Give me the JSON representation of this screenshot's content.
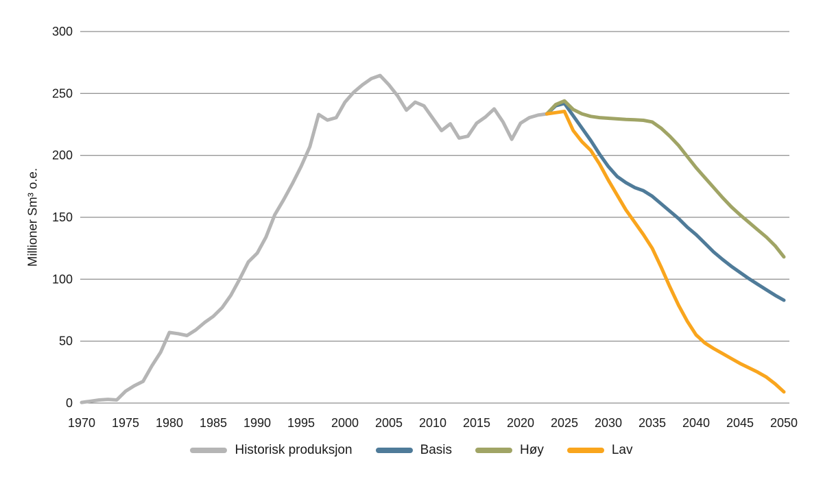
{
  "page": {
    "background": "#ffffff"
  },
  "chart_data": {
    "type": "line",
    "title": "",
    "xlabel": "",
    "ylabel": "Millioner Sm³ o.e.",
    "ylim": [
      0,
      300
    ],
    "xlim": [
      1970,
      2050
    ],
    "y_ticks": [
      0,
      50,
      100,
      150,
      200,
      250,
      300
    ],
    "x_ticks": [
      1970,
      1975,
      1980,
      1985,
      1990,
      1995,
      2000,
      2005,
      2010,
      2015,
      2020,
      2025,
      2030,
      2035,
      2040,
      2045,
      2050
    ],
    "grid": "horizontal-only",
    "grid_color": "#707070",
    "text_color": "#1a1a1a",
    "legend_position": "bottom-center",
    "line_width": 5,
    "series": [
      {
        "name": "Historisk produksjon",
        "color": "#b5b5b5",
        "start_year": 1970,
        "values": [
          0.5,
          1.5,
          2.5,
          3,
          2.5,
          9.5,
          14,
          17.5,
          30,
          41,
          57,
          56,
          54.5,
          59,
          65,
          70,
          77,
          87,
          100,
          114,
          121,
          134,
          152,
          164,
          177,
          191,
          207,
          233,
          228.5,
          230.5,
          243,
          251,
          257,
          262,
          264.5,
          257,
          248,
          236.5,
          243,
          240,
          230,
          220,
          225.5,
          214,
          215.5,
          226,
          231,
          237.5,
          227,
          213,
          226,
          230.5,
          232.5,
          233.5
        ]
      },
      {
        "name": "Basis",
        "color": "#4f7b99",
        "start_year": 2023,
        "values": [
          233.5,
          240,
          242,
          232,
          222,
          212,
          201,
          191,
          183,
          178,
          174,
          171.5,
          167,
          161,
          155,
          149,
          142,
          136,
          129,
          122,
          116,
          110.5,
          105.5,
          100.5,
          96,
          91.5,
          87,
          83
        ]
      },
      {
        "name": "Høy",
        "color": "#a0a465",
        "start_year": 2023,
        "values": [
          233.5,
          241,
          244,
          237,
          233.5,
          231.5,
          230.5,
          230,
          229.5,
          229,
          228.7,
          228.3,
          227,
          222,
          215.5,
          208,
          199,
          190,
          182,
          174,
          166,
          158.5,
          152,
          146,
          140,
          134,
          127,
          118
        ]
      },
      {
        "name": "Lav",
        "color": "#f9a51d",
        "start_year": 2023,
        "values": [
          233.5,
          234.5,
          235.5,
          220,
          211,
          204,
          193,
          180,
          168,
          156,
          146,
          136,
          125,
          110,
          94,
          79,
          66,
          55,
          48.5,
          44,
          40,
          36,
          32,
          28.5,
          25,
          21,
          15.5,
          9
        ]
      }
    ],
    "geometry_note": "plot area: x 117-1151 px, y0 588 px, y300 46 px"
  }
}
